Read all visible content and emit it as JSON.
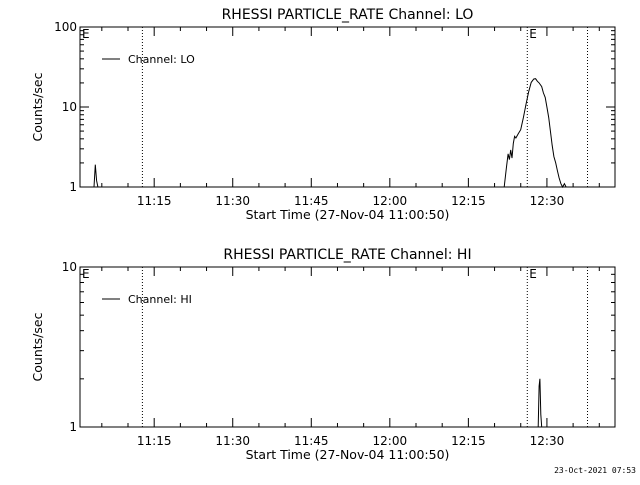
{
  "footer": {
    "timestamp": "23-Oct-2021 07:53"
  },
  "chart_data": [
    {
      "type": "line",
      "title": "RHESSI PARTICLE_RATE Channel: LO",
      "xlabel": "Start Time (27-Nov-04 11:00:50)",
      "ylabel": "Counts/sec",
      "yscale": "log",
      "xlim": [
        "11:00:50",
        "12:43:00"
      ],
      "ylim": [
        1,
        100
      ],
      "x_ticks": [
        "11:15",
        "11:30",
        "11:45",
        "12:00",
        "12:15",
        "12:30"
      ],
      "y_ticks": [
        "1",
        "10",
        "100"
      ],
      "legend": {
        "label": "Channel: LO",
        "position": "top-left"
      },
      "grid": false,
      "markers": [
        {
          "label": "E",
          "time": "11:00:50"
        },
        {
          "label": "",
          "time": "11:12:45"
        },
        {
          "label": "E",
          "time": "12:26:15"
        },
        {
          "label": "",
          "time": "12:37:45"
        }
      ],
      "series": [
        {
          "name": "Channel: LO",
          "segments": [
            {
              "x": [
                "11:03:30",
                "11:03:45",
                "11:04:00",
                "11:04:15"
              ],
              "y": [
                1.0,
                1.9,
                1.2,
                1.0
              ]
            },
            {
              "x": [
                "12:21:50",
                "12:22:15",
                "12:22:35",
                "12:22:50",
                "12:23:05",
                "12:23:20",
                "12:23:35",
                "12:23:50",
                "12:24:05",
                "12:24:30",
                "12:25:00",
                "12:25:30",
                "12:26:00",
                "12:26:30",
                "12:27:00",
                "12:27:30",
                "12:27:50",
                "12:28:10",
                "12:28:30",
                "12:29:00",
                "12:29:20",
                "12:29:40",
                "12:30:00",
                "12:30:20",
                "12:30:40",
                "12:31:00",
                "12:31:20",
                "12:31:40",
                "12:32:00",
                "12:32:20",
                "12:32:40",
                "12:33:00",
                "12:33:20",
                "12:33:40"
              ],
              "y": [
                1.0,
                1.7,
                2.6,
                2.2,
                2.9,
                2.3,
                3.5,
                4.3,
                4.1,
                4.6,
                5.2,
                7.4,
                10.8,
                15.4,
                20.3,
                22.4,
                22.6,
                21.0,
                20.0,
                18.0,
                15.0,
                13.2,
                10.0,
                7.4,
                5.0,
                3.3,
                2.4,
                2.0,
                1.6,
                1.3,
                1.1,
                1.0,
                1.1,
                1.0
              ]
            }
          ]
        }
      ]
    },
    {
      "type": "line",
      "title": "RHESSI PARTICLE_RATE Channel: HI",
      "xlabel": "Start Time (27-Nov-04 11:00:50)",
      "ylabel": "Counts/sec",
      "yscale": "log",
      "xlim": [
        "11:00:50",
        "12:43:00"
      ],
      "ylim": [
        1,
        10
      ],
      "x_ticks": [
        "11:15",
        "11:30",
        "11:45",
        "12:00",
        "12:15",
        "12:30"
      ],
      "y_ticks": [
        "1",
        "10"
      ],
      "legend": {
        "label": "Channel: HI",
        "position": "top-left"
      },
      "grid": false,
      "markers": [
        {
          "label": "E",
          "time": "11:00:50"
        },
        {
          "label": "",
          "time": "11:12:45"
        },
        {
          "label": "E",
          "time": "12:26:15"
        },
        {
          "label": "",
          "time": "12:37:45"
        }
      ],
      "series": [
        {
          "name": "Channel: HI",
          "segments": [
            {
              "x": [
                "12:28:20",
                "12:28:30",
                "12:28:40",
                "12:28:50",
                "12:29:00"
              ],
              "y": [
                1.0,
                1.8,
                2.0,
                1.2,
                1.0
              ]
            }
          ]
        }
      ]
    }
  ]
}
